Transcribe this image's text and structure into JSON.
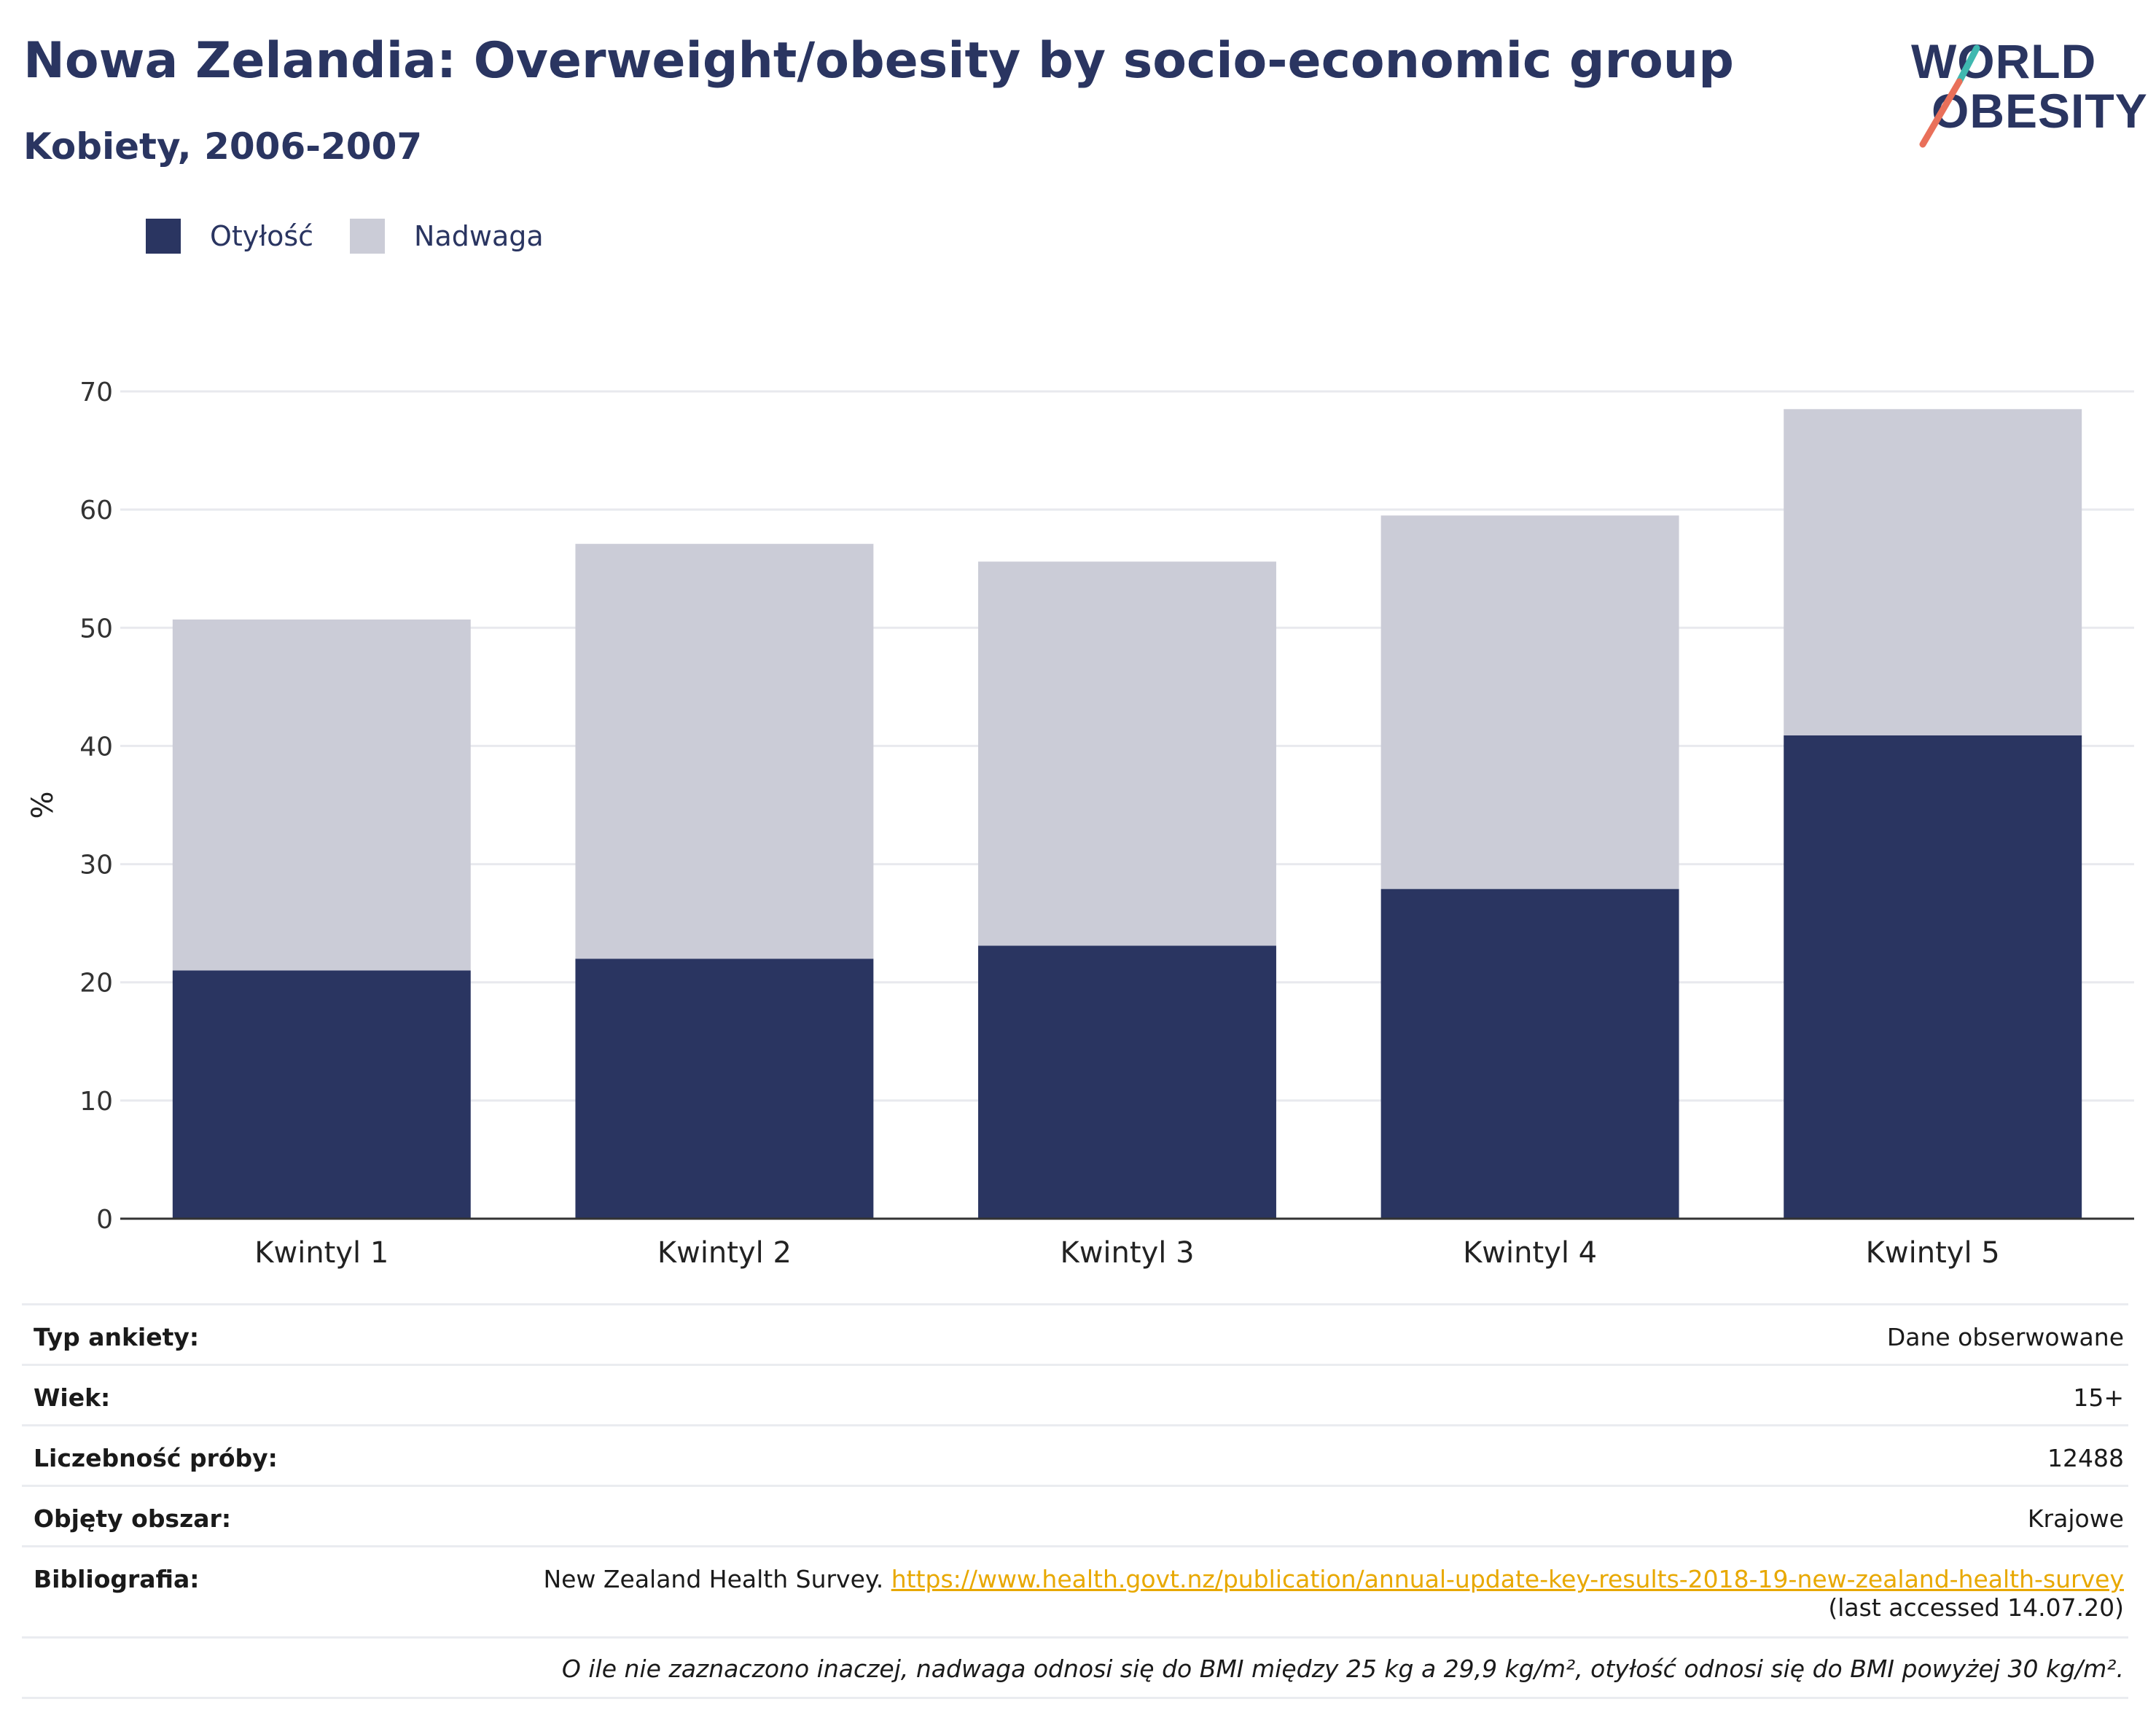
{
  "header": {
    "title": "Nowa Zelandia: Overweight/obesity by socio-economic group",
    "subtitle": "Kobiety, 2006-2007"
  },
  "logo": {
    "line1": "WORLD",
    "line2": "OBESITY"
  },
  "colors": {
    "obesity": "#2a3561",
    "overweight": "#cbccd7",
    "grid": "#e8e9ee",
    "axis": "#333333",
    "link": "#e8a800"
  },
  "chart_data": {
    "type": "bar",
    "stacked": true,
    "categories": [
      "Kwintyl 1",
      "Kwintyl 2",
      "Kwintyl 3",
      "Kwintyl 4",
      "Kwintyl 5"
    ],
    "series": [
      {
        "name": "Otyłość",
        "values": [
          21.0,
          22.0,
          23.1,
          27.9,
          40.9
        ]
      },
      {
        "name": "Nadwaga",
        "values": [
          29.7,
          35.1,
          32.5,
          31.6,
          27.6
        ]
      }
    ],
    "ylabel": "%",
    "ylim": [
      0,
      70
    ],
    "yticks": [
      0,
      10,
      20,
      30,
      40,
      50,
      60,
      70
    ],
    "grid": true,
    "legend": "top-left"
  },
  "meta": {
    "survey_type_label": "Typ ankiety:",
    "survey_type_value": "Dane obserwowane",
    "age_label": "Wiek:",
    "age_value": "15+",
    "sample_label": "Liczebność próby:",
    "sample_value": "12488",
    "area_label": "Objęty obszar:",
    "area_value": "Krajowe",
    "bib_label": "Bibliografia:",
    "bib_text": "New Zealand Health Survey. ",
    "bib_link": "https://www.health.govt.nz/publication/annual-update-key-results-2018-19-new-zealand-health-survey",
    "bib_accessed": "(last accessed 14.07.20)",
    "note": "O ile nie zaznaczono inaczej, nadwaga odnosi się do BMI między 25 kg a 29,9 kg/m², otyłość odnosi się do BMI powyżej 30 kg/m²."
  }
}
